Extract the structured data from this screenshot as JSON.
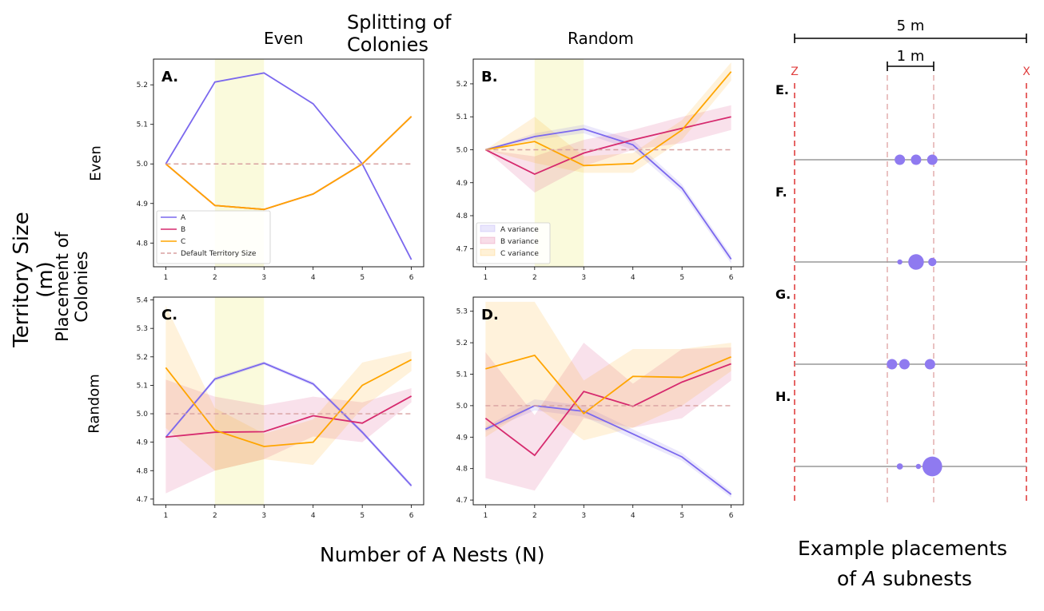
{
  "figure": {
    "title": "Splitting of Colonies",
    "col_labels": [
      "Even",
      "Random"
    ],
    "row_group_label": "Placement of Colonies",
    "row_labels": [
      "Even",
      "Random"
    ],
    "ylabel": "Territory Size (m)",
    "xlabel": "Number of A Nests (N)",
    "placements_title_line1": "Example placements",
    "placements_title_line2_prefix": "of ",
    "placements_title_line2_italic": "A",
    "placements_title_line2_suffix": " subnests"
  },
  "colors": {
    "A": "#7b68ee",
    "B": "#d62a6e",
    "C": "#ffa500",
    "default": "#d8a0a0",
    "highlight": "#fafadc",
    "boundary": "#e04040",
    "dot": "#8f7af0"
  },
  "chart_data": [
    {
      "type": "line",
      "panel": "A.",
      "x": [
        1,
        2,
        3,
        4,
        5,
        6
      ],
      "series": [
        {
          "name": "A",
          "values": [
            5.0,
            5.207,
            5.23,
            5.152,
            5.0,
            4.758
          ]
        },
        {
          "name": "B",
          "values": [
            5.0,
            4.895,
            4.885,
            4.924,
            5.0,
            5.12
          ]
        },
        {
          "name": "C",
          "values": [
            5.0,
            4.895,
            4.885,
            4.924,
            5.0,
            5.12
          ]
        },
        {
          "name": "Default Territory Size",
          "values": [
            5.0,
            5.0,
            5.0,
            5.0,
            5.0,
            5.0
          ]
        }
      ],
      "highlight_x": [
        2,
        3
      ],
      "ylim": [
        4.74,
        5.265
      ],
      "xlim": [
        0.75,
        6.25
      ],
      "yticks": [
        4.8,
        4.9,
        5.0,
        5.1,
        5.2
      ],
      "ytick_labels": [
        "4.8",
        "4.9",
        "5.0",
        "5.1",
        "5.2"
      ],
      "xticks": [
        1,
        2,
        3,
        4,
        5,
        6
      ],
      "legend": {
        "position": "lower-left",
        "entries": [
          "A",
          "B",
          "C",
          "Default Territory Size"
        ]
      }
    },
    {
      "type": "line",
      "panel": "B.",
      "x": [
        1,
        2,
        3,
        4,
        5,
        6
      ],
      "series": [
        {
          "name": "A",
          "values": [
            5.0,
            5.04,
            5.063,
            5.015,
            4.883,
            4.668
          ],
          "lower": [
            5.0,
            5.03,
            5.05,
            5.0,
            4.87,
            4.655
          ],
          "upper": [
            5.0,
            5.05,
            5.076,
            5.03,
            4.895,
            4.68
          ]
        },
        {
          "name": "B",
          "values": [
            5.0,
            4.926,
            4.99,
            5.03,
            5.065,
            5.1
          ],
          "lower": [
            5.0,
            4.87,
            4.95,
            5.0,
            5.02,
            5.06
          ],
          "upper": [
            5.0,
            4.98,
            5.03,
            5.06,
            5.1,
            5.135
          ]
        },
        {
          "name": "C",
          "values": [
            5.0,
            5.025,
            4.952,
            4.958,
            5.06,
            5.237
          ],
          "lower": [
            5.0,
            4.96,
            4.93,
            4.93,
            5.03,
            5.21
          ],
          "upper": [
            5.0,
            5.1,
            4.98,
            4.99,
            5.09,
            5.265
          ]
        },
        {
          "name": "Default Territory Size",
          "values": [
            5.0,
            5.0,
            5.0,
            5.0,
            5.0,
            5.0
          ]
        }
      ],
      "highlight_x": [
        2,
        3
      ],
      "ylim": [
        4.645,
        5.275
      ],
      "xlim": [
        0.75,
        6.25
      ],
      "yticks": [
        4.7,
        4.8,
        4.9,
        5.0,
        5.1,
        5.2
      ],
      "ytick_labels": [
        "4.7",
        "4.8",
        "4.9",
        "5.0",
        "5.1",
        "5.2"
      ],
      "xticks": [
        1,
        2,
        3,
        4,
        5,
        6
      ],
      "legend": {
        "position": "lower-left",
        "entries": [
          "A variance",
          "B variance",
          "C variance"
        ]
      }
    },
    {
      "type": "line",
      "panel": "C.",
      "x": [
        1,
        2,
        3,
        4,
        5,
        6
      ],
      "series": [
        {
          "name": "A",
          "values": [
            4.917,
            5.122,
            5.178,
            5.105,
            4.935,
            4.747
          ],
          "lower": [
            4.912,
            5.115,
            5.172,
            5.098,
            4.928,
            4.74
          ],
          "upper": [
            4.922,
            5.129,
            5.184,
            5.112,
            4.942,
            4.754
          ]
        },
        {
          "name": "B",
          "values": [
            4.918,
            4.935,
            4.937,
            4.993,
            4.967,
            5.062
          ],
          "lower": [
            4.72,
            4.8,
            4.84,
            4.92,
            4.9,
            5.04
          ],
          "upper": [
            5.12,
            5.06,
            5.03,
            5.06,
            5.04,
            5.09
          ]
        },
        {
          "name": "C",
          "values": [
            5.162,
            4.942,
            4.885,
            4.9,
            5.1,
            5.19
          ],
          "lower": [
            4.95,
            4.8,
            4.84,
            4.82,
            5.02,
            5.15
          ],
          "upper": [
            5.38,
            5.02,
            4.93,
            4.98,
            5.18,
            5.22
          ]
        },
        {
          "name": "Default Territory Size",
          "values": [
            5.0,
            5.0,
            5.0,
            5.0,
            5.0,
            5.0
          ]
        }
      ],
      "highlight_x": [
        2,
        3
      ],
      "ylim": [
        4.68,
        5.41
      ],
      "xlim": [
        0.75,
        6.25
      ],
      "yticks": [
        4.7,
        4.8,
        4.9,
        5.0,
        5.1,
        5.2,
        5.3,
        5.4
      ],
      "ytick_labels": [
        "4.7",
        "4.8",
        "4.9",
        "5.0",
        "5.1",
        "5.2",
        "5.3",
        "5.4"
      ],
      "xticks": [
        1,
        2,
        3,
        4,
        5,
        6
      ]
    },
    {
      "type": "line",
      "panel": "D.",
      "x": [
        1,
        2,
        3,
        4,
        5,
        6
      ],
      "series": [
        {
          "name": "A",
          "values": [
            4.925,
            5.0,
            4.982,
            4.91,
            4.837,
            4.718
          ],
          "lower": [
            4.918,
            4.985,
            4.965,
            4.895,
            4.825,
            4.708
          ],
          "upper": [
            4.932,
            5.02,
            5.0,
            4.925,
            4.85,
            4.728
          ]
        },
        {
          "name": "B",
          "values": [
            4.96,
            4.842,
            5.045,
            4.998,
            5.075,
            5.133
          ],
          "lower": [
            4.77,
            4.73,
            4.96,
            4.93,
            4.96,
            5.08
          ],
          "upper": [
            5.17,
            4.97,
            5.2,
            5.07,
            5.18,
            5.185
          ]
        },
        {
          "name": "C",
          "values": [
            5.117,
            5.16,
            4.975,
            5.093,
            5.09,
            5.155
          ],
          "lower": [
            4.9,
            5.0,
            4.89,
            4.93,
            5.0,
            5.11
          ],
          "upper": [
            5.33,
            5.33,
            5.08,
            5.18,
            5.18,
            5.2
          ]
        },
        {
          "name": "Default Territory Size",
          "values": [
            5.0,
            5.0,
            5.0,
            5.0,
            5.0,
            5.0
          ]
        }
      ],
      "ylim": [
        4.685,
        5.345
      ],
      "xlim": [
        0.75,
        6.25
      ],
      "yticks": [
        4.7,
        4.8,
        4.9,
        5.0,
        5.1,
        5.2,
        5.3
      ],
      "ytick_labels": [
        "4.7",
        "4.8",
        "4.9",
        "5.0",
        "5.1",
        "5.2",
        "5.3"
      ],
      "xticks": [
        1,
        2,
        3,
        4,
        5,
        6
      ]
    }
  ],
  "placements": {
    "scale_5m_label": "5 m",
    "scale_1m_label": "1 m",
    "left_boundary_label": "Z",
    "right_boundary_label": "X",
    "total_span_m": 5,
    "inner_span_m": [
      2,
      3
    ],
    "examples": [
      {
        "label": "E.",
        "positions_m": [
          2.27,
          2.62,
          2.97
        ],
        "relative_sizes": [
          1,
          1,
          1
        ]
      },
      {
        "label": "F.",
        "positions_m": [
          2.27,
          2.62,
          2.97
        ],
        "relative_sizes": [
          0.5,
          1.5,
          0.8
        ]
      },
      {
        "label": "G.",
        "positions_m": [
          2.1,
          2.37,
          2.92
        ],
        "relative_sizes": [
          1,
          1,
          1
        ]
      },
      {
        "label": "H.",
        "positions_m": [
          2.27,
          2.67,
          2.97
        ],
        "relative_sizes": [
          0.6,
          0.5,
          1.9
        ]
      }
    ]
  }
}
